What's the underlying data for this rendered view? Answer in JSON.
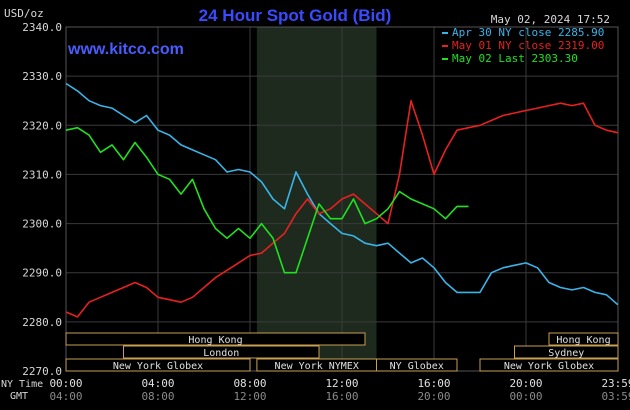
{
  "header": {
    "title": "24 Hour Spot Gold (Bid)",
    "unit": "USD/oz",
    "site": "www.kitco.com",
    "timestamp": "May 02, 2024 17:52"
  },
  "colors": {
    "background": "#000000",
    "plot": "#000000",
    "grid": "#3a3a3a",
    "highlight": "#1e2a1e",
    "title": "#3a4aff",
    "site": "#4b5cff",
    "text": "#d8d8d8",
    "apr30": "#3ab4e8",
    "may01": "#e82020",
    "may02": "#20e020",
    "session_border": "#c8a050"
  },
  "legend": [
    {
      "key": "apr30",
      "label": "Apr 30 NY close 2285.90",
      "color": "#3ab4e8"
    },
    {
      "key": "may01",
      "label": "May 01 NY close 2319.00",
      "color": "#e82020"
    },
    {
      "key": "may02",
      "label": "May 02 Last 2303.30",
      "color": "#20e020"
    }
  ],
  "x_axis": {
    "ny_label": "NY Time",
    "gmt_label": "GMT",
    "ny_ticks": [
      "00:00",
      "04:00",
      "08:00",
      "12:00",
      "16:00",
      "20:00",
      "23:59"
    ],
    "gmt_ticks": [
      "04:00",
      "08:00",
      "12:00",
      "16:00",
      "20:00",
      "00:00",
      "03:59"
    ]
  },
  "sessions": {
    "row1": [
      {
        "label": "Hong Kong",
        "start": 0,
        "end": 13
      },
      {
        "label": "Hong Kong",
        "start": 21,
        "end": 24
      }
    ],
    "row2": [
      {
        "label": "London",
        "start": 2.5,
        "end": 11
      },
      {
        "label": "Sydney",
        "start": 19.5,
        "end": 24
      }
    ],
    "row3": [
      {
        "label": "New York Globex",
        "start": 0,
        "end": 8
      },
      {
        "label": "New York NYMEX",
        "start": 8.3,
        "end": 13.5
      },
      {
        "label": "NY Globex",
        "start": 13.5,
        "end": 17
      },
      {
        "label": "New York Globex",
        "start": 18,
        "end": 24
      }
    ]
  },
  "chart_data": {
    "type": "line",
    "title": "24 Hour Spot Gold (Bid)",
    "ylabel": "USD/oz",
    "xlim": [
      0,
      24
    ],
    "ylim": [
      2270,
      2340
    ],
    "yticks": [
      2270.0,
      2280.0,
      2290.0,
      2300.0,
      2310.0,
      2320.0,
      2330.0,
      2340.0
    ],
    "highlight_range": [
      8.3,
      13.5
    ],
    "series": [
      {
        "name": "Apr 30 NY close 2285.90",
        "color": "#3ab4e8",
        "x": [
          0,
          0.5,
          1,
          1.5,
          2,
          2.5,
          3,
          3.5,
          4,
          4.5,
          5,
          5.5,
          6,
          6.5,
          7,
          7.5,
          8,
          8.5,
          9,
          9.5,
          10,
          10.5,
          11,
          11.5,
          12,
          12.5,
          13,
          13.5,
          14,
          14.5,
          15,
          15.5,
          16,
          16.5,
          17,
          17.5,
          18,
          18.5,
          19,
          19.5,
          20,
          20.5,
          21,
          21.5,
          22,
          22.5,
          23,
          23.5,
          23.99
        ],
        "values": [
          2328.5,
          2327,
          2325,
          2324,
          2323.5,
          2322,
          2320.5,
          2322,
          2319,
          2318,
          2316,
          2315,
          2314,
          2313,
          2310.5,
          2311,
          2310.5,
          2308.5,
          2305,
          2303,
          2310.5,
          2306,
          2302,
          2300,
          2298,
          2297.5,
          2296,
          2295.5,
          2296,
          2294,
          2292,
          2293,
          2291,
          2288,
          2286,
          2286,
          2286,
          2290,
          2291,
          2291.5,
          2292,
          2291,
          2288,
          2287,
          2286.5,
          2287,
          2286,
          2285.5,
          2283.5
        ]
      },
      {
        "name": "May 01 NY close 2319.00",
        "color": "#e82020",
        "x": [
          0,
          0.5,
          1,
          1.5,
          2,
          2.5,
          3,
          3.5,
          4,
          4.5,
          5,
          5.5,
          6,
          6.5,
          7,
          7.5,
          8,
          8.5,
          9,
          9.5,
          10,
          10.5,
          11,
          11.5,
          12,
          12.5,
          13,
          13.5,
          14,
          14.5,
          15,
          15.5,
          16,
          16.5,
          17,
          17.5,
          18,
          18.5,
          19,
          19.5,
          20,
          20.5,
          21,
          21.5,
          22,
          22.5,
          23,
          23.5,
          23.99
        ],
        "values": [
          2282,
          2281,
          2284,
          2285,
          2286,
          2287,
          2288,
          2287,
          2285,
          2284.5,
          2284,
          2285,
          2287,
          2289,
          2290.5,
          2292,
          2293.5,
          2294,
          2296,
          2298,
          2302,
          2305,
          2302,
          2303,
          2305,
          2306,
          2304,
          2302,
          2300,
          2310,
          2325,
          2318,
          2310,
          2315,
          2319,
          2319.5,
          2320,
          2321,
          2322,
          2322.5,
          2323,
          2323.5,
          2324,
          2324.5,
          2324,
          2324.5,
          2320,
          2319,
          2318.5
        ]
      },
      {
        "name": "May 02 Last 2303.30",
        "color": "#20e020",
        "x": [
          0,
          0.5,
          1,
          1.5,
          2,
          2.5,
          3,
          3.5,
          4,
          4.5,
          5,
          5.5,
          6,
          6.5,
          7,
          7.5,
          8,
          8.5,
          9,
          9.5,
          10,
          10.5,
          11,
          11.5,
          12,
          12.5,
          13,
          13.5,
          14,
          14.5,
          15,
          15.5,
          16,
          16.5,
          17,
          17.5
        ],
        "values": [
          2319,
          2319.5,
          2318,
          2314.5,
          2316,
          2313,
          2316.5,
          2313.5,
          2310,
          2309,
          2306,
          2309,
          2303,
          2299,
          2297,
          2299,
          2297,
          2300,
          2297,
          2290,
          2290,
          2297,
          2304,
          2301,
          2301,
          2305,
          2300,
          2301,
          2303,
          2306.5,
          2305,
          2304,
          2303,
          2301,
          2303.5,
          2303.5
        ]
      }
    ]
  }
}
